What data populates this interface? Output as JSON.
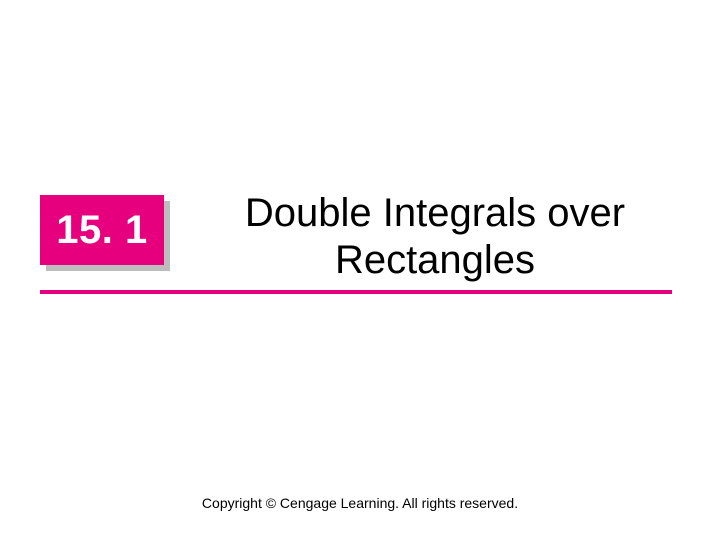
{
  "accent_color": "#e6007e",
  "section": {
    "number": "15. 1"
  },
  "title": "Double Integrals over Rectangles",
  "copyright": "Copyright © Cengage Learning. All rights reserved."
}
